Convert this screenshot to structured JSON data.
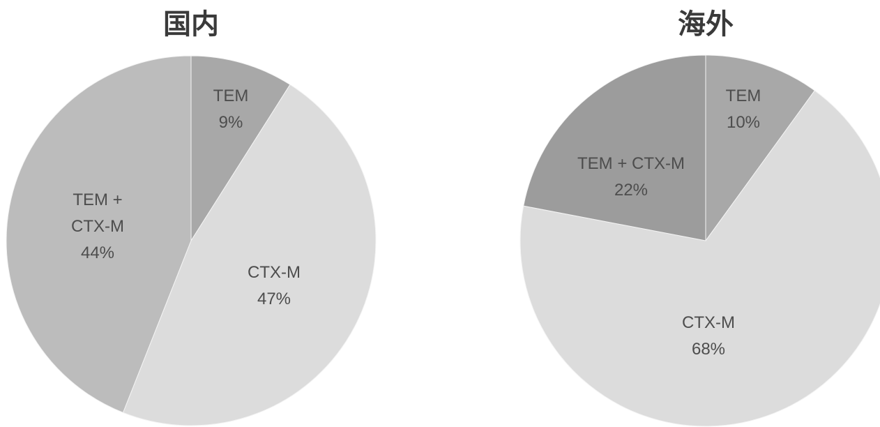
{
  "chart_data": [
    {
      "type": "pie",
      "title": "国内",
      "slices": [
        {
          "name": "TEM",
          "value": 9,
          "label_lines": [
            "TEM",
            "9%"
          ],
          "color": "#a8a8a8"
        },
        {
          "name": "CTX-M",
          "value": 47,
          "label_lines": [
            "CTX-M",
            "47%"
          ],
          "color": "#dcdcdc"
        },
        {
          "name": "TEM + CTX-M",
          "value": 44,
          "label_lines": [
            "TEM +",
            "CTX-M",
            "44%"
          ],
          "color": "#bcbcbc"
        }
      ]
    },
    {
      "type": "pie",
      "title": "海外",
      "slices": [
        {
          "name": "TEM",
          "value": 10,
          "label_lines": [
            "TEM",
            "10%"
          ],
          "color": "#a8a8a8"
        },
        {
          "name": "CTX-M",
          "value": 68,
          "label_lines": [
            "CTX-M",
            "68%"
          ],
          "color": "#dcdcdc"
        },
        {
          "name": "TEM + CTX-M",
          "value": 22,
          "label_lines": [
            "TEM + CTX-M",
            "22%"
          ],
          "color": "#9c9c9c"
        }
      ]
    }
  ]
}
